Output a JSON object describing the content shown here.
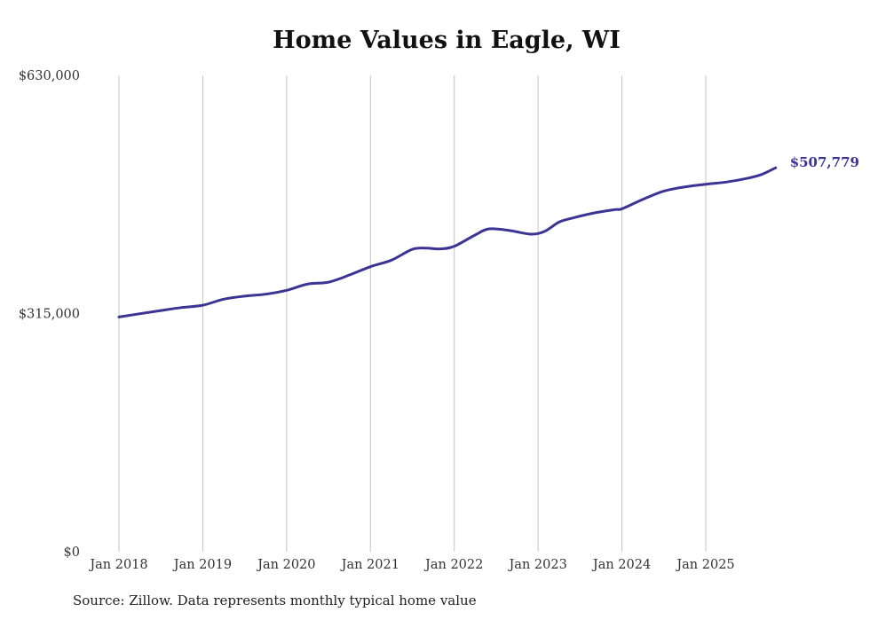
{
  "chart_data": {
    "type": "line",
    "title": "Home Values in Eagle, WI",
    "source": "Source: Zillow. Data represents monthly typical home value",
    "xlabel": "",
    "ylabel": "",
    "ylim": [
      0,
      630000
    ],
    "y_ticks": [
      {
        "value": 0,
        "label": "$0"
      },
      {
        "value": 315000,
        "label": "$315,000"
      },
      {
        "value": 630000,
        "label": "$630,000"
      }
    ],
    "x_ticks": [
      {
        "month_index": 0,
        "label": "Jan 2018"
      },
      {
        "month_index": 12,
        "label": "Jan 2019"
      },
      {
        "month_index": 24,
        "label": "Jan 2020"
      },
      {
        "month_index": 36,
        "label": "Jan 2021"
      },
      {
        "month_index": 48,
        "label": "Jan 2022"
      },
      {
        "month_index": 60,
        "label": "Jan 2023"
      },
      {
        "month_index": 72,
        "label": "Jan 2024"
      },
      {
        "month_index": 84,
        "label": "Jan 2025"
      }
    ],
    "grid": "vertical",
    "line_color": "#3b3494",
    "end_label": "$507,779",
    "series": [
      {
        "name": "Typical home value",
        "points": [
          {
            "date": "2018-01",
            "month_index": 0,
            "value": 310500
          },
          {
            "date": "2018-07",
            "month_index": 6,
            "value": 319000
          },
          {
            "date": "2018-10",
            "month_index": 9,
            "value": 323000
          },
          {
            "date": "2019-01",
            "month_index": 12,
            "value": 326000
          },
          {
            "date": "2019-04",
            "month_index": 15,
            "value": 334000
          },
          {
            "date": "2019-07",
            "month_index": 18,
            "value": 338000
          },
          {
            "date": "2019-10",
            "month_index": 21,
            "value": 340600
          },
          {
            "date": "2020-01",
            "month_index": 24,
            "value": 345700
          },
          {
            "date": "2020-04",
            "month_index": 27,
            "value": 354000
          },
          {
            "date": "2020-07",
            "month_index": 30,
            "value": 356500
          },
          {
            "date": "2020-10",
            "month_index": 33,
            "value": 366000
          },
          {
            "date": "2021-01",
            "month_index": 36,
            "value": 377000
          },
          {
            "date": "2021-04",
            "month_index": 39,
            "value": 385600
          },
          {
            "date": "2021-07",
            "month_index": 42,
            "value": 400000
          },
          {
            "date": "2021-09",
            "month_index": 44,
            "value": 401500
          },
          {
            "date": "2021-11",
            "month_index": 46,
            "value": 400500
          },
          {
            "date": "2022-01",
            "month_index": 48,
            "value": 404000
          },
          {
            "date": "2022-04",
            "month_index": 51,
            "value": 419000
          },
          {
            "date": "2022-06",
            "month_index": 53,
            "value": 427000
          },
          {
            "date": "2022-09",
            "month_index": 56,
            "value": 424700
          },
          {
            "date": "2022-12",
            "month_index": 59,
            "value": 420000
          },
          {
            "date": "2023-02",
            "month_index": 61,
            "value": 424000
          },
          {
            "date": "2023-04",
            "month_index": 63,
            "value": 436000
          },
          {
            "date": "2023-06",
            "month_index": 65,
            "value": 441500
          },
          {
            "date": "2023-09",
            "month_index": 68,
            "value": 448000
          },
          {
            "date": "2023-12",
            "month_index": 71,
            "value": 452500
          },
          {
            "date": "2024-01",
            "month_index": 72,
            "value": 453500
          },
          {
            "date": "2024-04",
            "month_index": 75,
            "value": 466000
          },
          {
            "date": "2024-07",
            "month_index": 78,
            "value": 477000
          },
          {
            "date": "2024-10",
            "month_index": 81,
            "value": 482500
          },
          {
            "date": "2025-01",
            "month_index": 84,
            "value": 486000
          },
          {
            "date": "2025-04",
            "month_index": 87,
            "value": 489000
          },
          {
            "date": "2025-07",
            "month_index": 90,
            "value": 494000
          },
          {
            "date": "2025-09",
            "month_index": 92,
            "value": 499000
          },
          {
            "date": "2025-11",
            "month_index": 94,
            "value": 507779
          }
        ]
      }
    ]
  }
}
